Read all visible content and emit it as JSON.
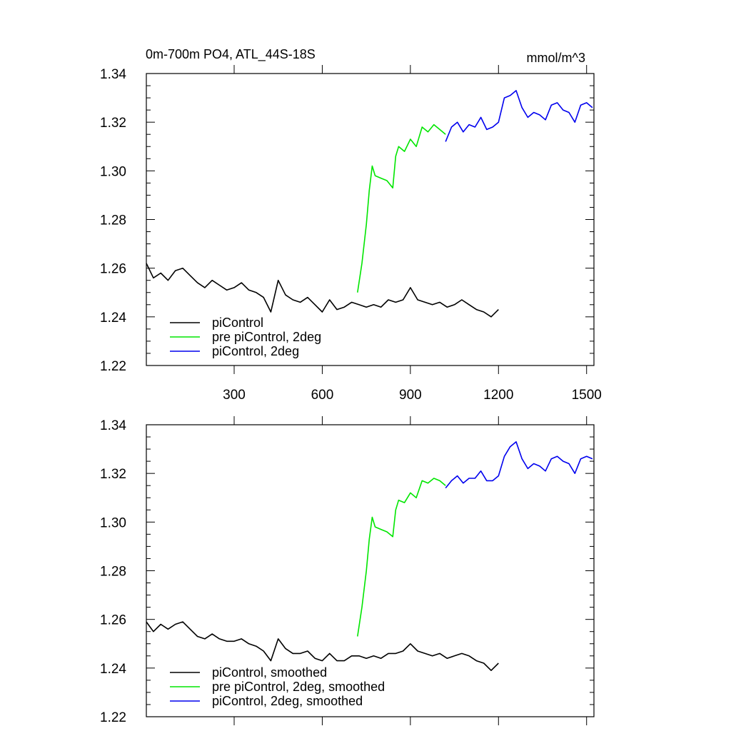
{
  "header": {
    "title": "0m-700m PO4, ATL_44S-18S",
    "units": "mmol/m^3"
  },
  "colors": {
    "piControl": "#000000",
    "pre_piControl_2deg": "#00e600",
    "piControl_2deg": "#0000ee"
  },
  "chart_data": [
    {
      "type": "line",
      "title": "0m-700m PO4, ATL_44S-18S",
      "xlabel": "",
      "ylabel": "mmol/m^3",
      "xlim": [
        1,
        1525
      ],
      "ylim": [
        1.22,
        1.34
      ],
      "x_ticks": [
        300,
        600,
        900,
        1200,
        1500
      ],
      "x_tick_labels": [
        "300",
        "600",
        "900",
        "1200",
        "1500"
      ],
      "y_ticks": [
        1.22,
        1.24,
        1.26,
        1.28,
        1.3,
        1.32,
        1.34
      ],
      "y_tick_labels": [
        "1.22",
        "1.24",
        "1.26",
        "1.28",
        "1.30",
        "1.32",
        "1.34"
      ],
      "grid": false,
      "legend_position": "bottom-left",
      "series": [
        {
          "name": "piControl",
          "color": "#000000",
          "x": [
            1,
            25,
            50,
            75,
            100,
            125,
            150,
            175,
            200,
            225,
            250,
            275,
            300,
            325,
            350,
            375,
            400,
            425,
            450,
            475,
            500,
            525,
            550,
            575,
            600,
            625,
            650,
            675,
            700,
            725,
            750,
            775,
            800,
            825,
            850,
            875,
            900,
            925,
            950,
            975,
            1000,
            1025,
            1050,
            1075,
            1100,
            1125,
            1150,
            1175,
            1200
          ],
          "values": [
            1.262,
            1.256,
            1.258,
            1.255,
            1.259,
            1.26,
            1.257,
            1.254,
            1.252,
            1.255,
            1.253,
            1.251,
            1.252,
            1.254,
            1.251,
            1.25,
            1.248,
            1.242,
            1.255,
            1.249,
            1.247,
            1.246,
            1.248,
            1.245,
            1.242,
            1.247,
            1.243,
            1.244,
            1.246,
            1.245,
            1.244,
            1.245,
            1.244,
            1.247,
            1.246,
            1.247,
            1.252,
            1.247,
            1.246,
            1.245,
            1.246,
            1.244,
            1.245,
            1.247,
            1.245,
            1.243,
            1.242,
            1.24,
            1.243
          ]
        },
        {
          "name": "pre piControl, 2deg",
          "color": "#00e600",
          "x": [
            720,
            735,
            750,
            760,
            770,
            780,
            800,
            820,
            840,
            850,
            860,
            880,
            900,
            920,
            940,
            960,
            980,
            1000,
            1020
          ],
          "values": [
            1.25,
            1.262,
            1.278,
            1.292,
            1.302,
            1.298,
            1.297,
            1.296,
            1.293,
            1.306,
            1.31,
            1.308,
            1.313,
            1.31,
            1.318,
            1.316,
            1.319,
            1.317,
            1.315
          ]
        },
        {
          "name": "piControl, 2deg",
          "color": "#0000ee",
          "x": [
            1020,
            1040,
            1060,
            1080,
            1100,
            1120,
            1140,
            1160,
            1180,
            1200,
            1220,
            1240,
            1260,
            1280,
            1300,
            1320,
            1340,
            1360,
            1380,
            1400,
            1420,
            1440,
            1460,
            1480,
            1500,
            1520
          ],
          "values": [
            1.312,
            1.318,
            1.32,
            1.316,
            1.319,
            1.318,
            1.322,
            1.317,
            1.318,
            1.32,
            1.33,
            1.331,
            1.333,
            1.326,
            1.322,
            1.324,
            1.323,
            1.321,
            1.327,
            1.328,
            1.325,
            1.324,
            1.32,
            1.327,
            1.328,
            1.326
          ]
        }
      ]
    },
    {
      "type": "line",
      "title": "",
      "xlabel": "",
      "ylabel": "",
      "xlim": [
        1,
        1525
      ],
      "ylim": [
        1.22,
        1.34
      ],
      "x_ticks": [
        300,
        600,
        900,
        1200,
        1500
      ],
      "y_ticks": [
        1.22,
        1.24,
        1.26,
        1.28,
        1.3,
        1.32,
        1.34
      ],
      "y_tick_labels": [
        "1.22",
        "1.24",
        "1.26",
        "1.28",
        "1.30",
        "1.32",
        "1.34"
      ],
      "grid": false,
      "legend_position": "bottom-left",
      "series": [
        {
          "name": "piControl, smoothed",
          "color": "#000000",
          "x": [
            1,
            25,
            50,
            75,
            100,
            125,
            150,
            175,
            200,
            225,
            250,
            275,
            300,
            325,
            350,
            375,
            400,
            425,
            450,
            475,
            500,
            525,
            550,
            575,
            600,
            625,
            650,
            675,
            700,
            725,
            750,
            775,
            800,
            825,
            850,
            875,
            900,
            925,
            950,
            975,
            1000,
            1025,
            1050,
            1075,
            1100,
            1125,
            1150,
            1175,
            1200
          ],
          "values": [
            1.259,
            1.255,
            1.258,
            1.256,
            1.258,
            1.259,
            1.256,
            1.253,
            1.252,
            1.254,
            1.252,
            1.251,
            1.251,
            1.252,
            1.25,
            1.249,
            1.247,
            1.243,
            1.252,
            1.248,
            1.246,
            1.246,
            1.247,
            1.244,
            1.243,
            1.246,
            1.243,
            1.243,
            1.245,
            1.245,
            1.244,
            1.245,
            1.244,
            1.246,
            1.246,
            1.247,
            1.25,
            1.247,
            1.246,
            1.245,
            1.246,
            1.244,
            1.245,
            1.246,
            1.245,
            1.243,
            1.242,
            1.239,
            1.242
          ]
        },
        {
          "name": "pre piControl, 2deg, smoothed",
          "color": "#00e600",
          "x": [
            720,
            735,
            750,
            760,
            770,
            780,
            800,
            820,
            840,
            850,
            860,
            880,
            900,
            920,
            940,
            960,
            980,
            1000,
            1020
          ],
          "values": [
            1.253,
            1.265,
            1.28,
            1.293,
            1.302,
            1.298,
            1.297,
            1.296,
            1.294,
            1.305,
            1.309,
            1.308,
            1.312,
            1.31,
            1.317,
            1.316,
            1.318,
            1.317,
            1.315
          ]
        },
        {
          "name": "piControl, 2deg, smoothed",
          "color": "#0000ee",
          "x": [
            1020,
            1040,
            1060,
            1080,
            1100,
            1120,
            1140,
            1160,
            1180,
            1200,
            1220,
            1240,
            1260,
            1280,
            1300,
            1320,
            1340,
            1360,
            1380,
            1400,
            1420,
            1440,
            1460,
            1480,
            1500,
            1520
          ],
          "values": [
            1.314,
            1.317,
            1.319,
            1.316,
            1.318,
            1.318,
            1.321,
            1.317,
            1.317,
            1.319,
            1.327,
            1.331,
            1.333,
            1.326,
            1.322,
            1.324,
            1.323,
            1.321,
            1.326,
            1.327,
            1.325,
            1.324,
            1.32,
            1.326,
            1.327,
            1.326
          ]
        }
      ]
    }
  ]
}
